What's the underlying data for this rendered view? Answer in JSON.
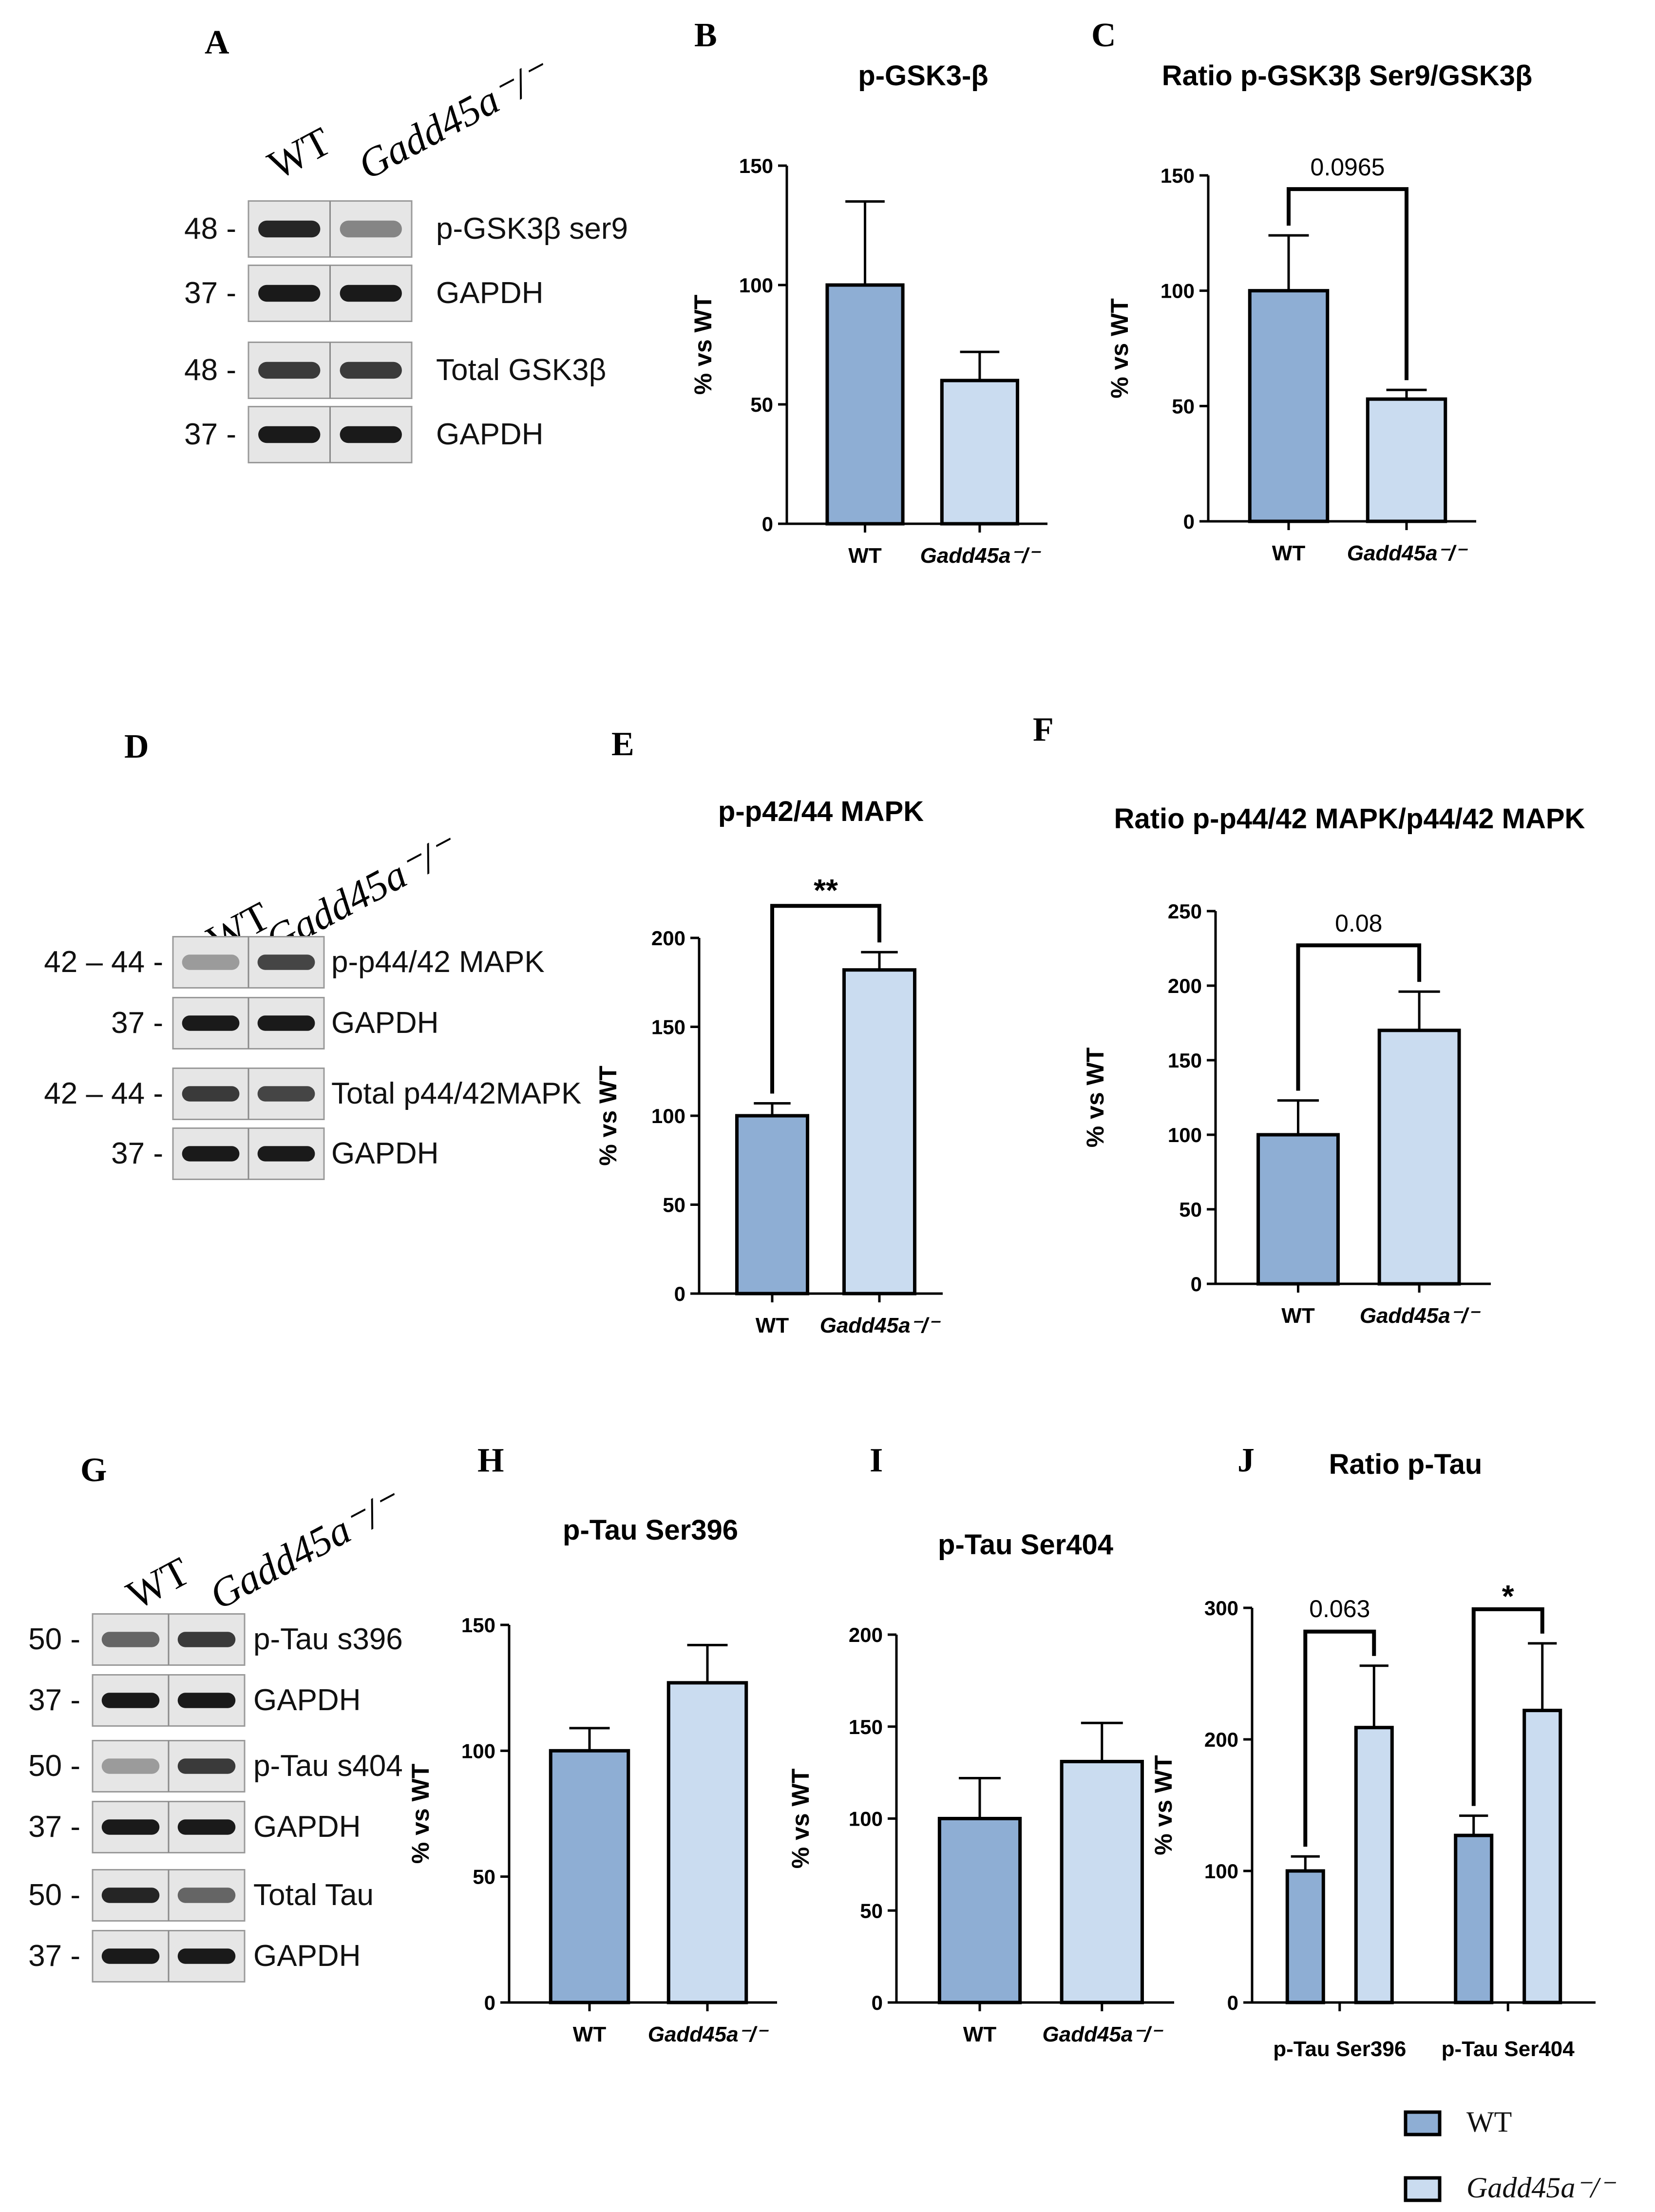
{
  "colors": {
    "wt": "#8eaed4",
    "ko": "#cadcf0",
    "edge": "#000000"
  },
  "panels": {
    "A": "A",
    "B": "B",
    "C": "C",
    "D": "D",
    "E": "E",
    "F": "F",
    "G": "G",
    "H": "H",
    "I": "I",
    "J": "J"
  },
  "blots": {
    "A": {
      "lane_wt": "WT",
      "lane_ko": "Gadd45a⁻/⁻",
      "rows": [
        {
          "mw": "48 -",
          "label": "p-GSK3β ser9",
          "intensity_wt": 0.9,
          "intensity_ko": 0.45
        },
        {
          "mw": "37 -",
          "label": "GAPDH",
          "intensity_wt": 0.95,
          "intensity_ko": 0.95
        },
        {
          "mw": "48 -",
          "label": "Total GSK3β",
          "intensity_wt": 0.8,
          "intensity_ko": 0.8
        },
        {
          "mw": "37 -",
          "label": "GAPDH",
          "intensity_wt": 0.95,
          "intensity_ko": 0.95
        }
      ]
    },
    "D": {
      "lane_wt": "WT",
      "lane_ko": "Gadd45a⁻/⁻",
      "rows": [
        {
          "mw": "42 – 44 -",
          "label": "p-p44/42 MAPK",
          "intensity_wt": 0.35,
          "intensity_ko": 0.75
        },
        {
          "mw": "37 -",
          "label": "GAPDH",
          "intensity_wt": 0.95,
          "intensity_ko": 0.95
        },
        {
          "mw": "42 – 44 -",
          "label": "Total p44/42MAPK",
          "intensity_wt": 0.8,
          "intensity_ko": 0.75
        },
        {
          "mw": "37 -",
          "label": "GAPDH",
          "intensity_wt": 0.95,
          "intensity_ko": 0.95
        }
      ]
    },
    "G": {
      "lane_wt": "WT",
      "lane_ko": "Gadd45a⁻/⁻",
      "rows": [
        {
          "mw": "50 -",
          "label": "p-Tau s396",
          "intensity_wt": 0.6,
          "intensity_ko": 0.8
        },
        {
          "mw": "37 -",
          "label": "GAPDH",
          "intensity_wt": 0.95,
          "intensity_ko": 0.95
        },
        {
          "mw": "50 -",
          "label": "p-Tau s404",
          "intensity_wt": 0.35,
          "intensity_ko": 0.8
        },
        {
          "mw": "37 -",
          "label": "GAPDH",
          "intensity_wt": 0.95,
          "intensity_ko": 0.95
        },
        {
          "mw": "50 -",
          "label": "Total Tau",
          "intensity_wt": 0.9,
          "intensity_ko": 0.6
        },
        {
          "mw": "37 -",
          "label": "GAPDH",
          "intensity_wt": 0.95,
          "intensity_ko": 0.95
        }
      ]
    }
  },
  "chart_data": [
    {
      "id": "B",
      "type": "bar",
      "title": "p-GSK3-β",
      "ylabel": "% vs WT",
      "ylim": [
        0,
        150
      ],
      "yticks": [
        0,
        50,
        100,
        150
      ],
      "categories": [
        "WT",
        "Gadd45a⁻/⁻"
      ],
      "values": [
        100,
        60
      ],
      "errors": [
        35,
        12
      ],
      "annotations": []
    },
    {
      "id": "C",
      "type": "bar",
      "title": "Ratio p-GSK3β Ser9/GSK3β",
      "ylabel": "% vs WT",
      "ylim": [
        0,
        150
      ],
      "yticks": [
        0,
        50,
        100,
        150
      ],
      "categories": [
        "WT",
        "Gadd45a⁻/⁻"
      ],
      "values": [
        100,
        53
      ],
      "errors": [
        24,
        4
      ],
      "annotations": [
        {
          "text": "0.0965",
          "from": 0,
          "to": 1
        }
      ]
    },
    {
      "id": "E",
      "type": "bar",
      "title": "p-p42/44 MAPK",
      "ylabel": "% vs WT",
      "ylim": [
        0,
        200
      ],
      "yticks": [
        0,
        50,
        100,
        150,
        200
      ],
      "categories": [
        "WT",
        "Gadd45a⁻/⁻"
      ],
      "values": [
        100,
        182
      ],
      "errors": [
        7,
        10
      ],
      "annotations": [
        {
          "text": "**",
          "from": 0,
          "to": 1
        }
      ]
    },
    {
      "id": "F",
      "type": "bar",
      "title": "Ratio p-p44/42 MAPK/p44/42 MAPK",
      "ylabel": "% vs WT",
      "ylim": [
        0,
        250
      ],
      "yticks": [
        0,
        50,
        100,
        150,
        200,
        250
      ],
      "categories": [
        "WT",
        "Gadd45a⁻/⁻"
      ],
      "values": [
        100,
        170
      ],
      "errors": [
        23,
        26
      ],
      "annotations": [
        {
          "text": "0.08",
          "from": 0,
          "to": 1
        }
      ]
    },
    {
      "id": "H",
      "type": "bar",
      "title": "p-Tau Ser396",
      "ylabel": "% vs WT",
      "ylim": [
        0,
        150
      ],
      "yticks": [
        0,
        50,
        100,
        150
      ],
      "categories": [
        "WT",
        "Gadd45a⁻/⁻"
      ],
      "values": [
        100,
        127
      ],
      "errors": [
        9,
        15
      ],
      "annotations": []
    },
    {
      "id": "I",
      "type": "bar",
      "title": "p-Tau Ser404",
      "ylabel": "% vs WT",
      "ylim": [
        0,
        200
      ],
      "yticks": [
        0,
        50,
        100,
        150,
        200
      ],
      "categories": [
        "WT",
        "Gadd45a⁻/⁻"
      ],
      "values": [
        100,
        131
      ],
      "errors": [
        22,
        21
      ],
      "annotations": []
    },
    {
      "id": "J",
      "type": "bar",
      "title": "Ratio p-Tau",
      "ylabel": "% vs WT",
      "ylim": [
        0,
        300
      ],
      "yticks": [
        0,
        100,
        200,
        300
      ],
      "categories": [
        "p-Tau Ser396",
        "p-Tau Ser404"
      ],
      "series": [
        {
          "name": "WT",
          "values": [
            100,
            127
          ],
          "errors": [
            11,
            15
          ]
        },
        {
          "name": "Gadd45a⁻/⁻",
          "values": [
            209,
            222
          ],
          "errors": [
            47,
            51
          ]
        }
      ],
      "annotations": [
        {
          "text": "0.063",
          "category": 0
        },
        {
          "text": "*",
          "category": 1
        }
      ],
      "legend": [
        "WT",
        "Gadd45a⁻/⁻"
      ]
    }
  ]
}
